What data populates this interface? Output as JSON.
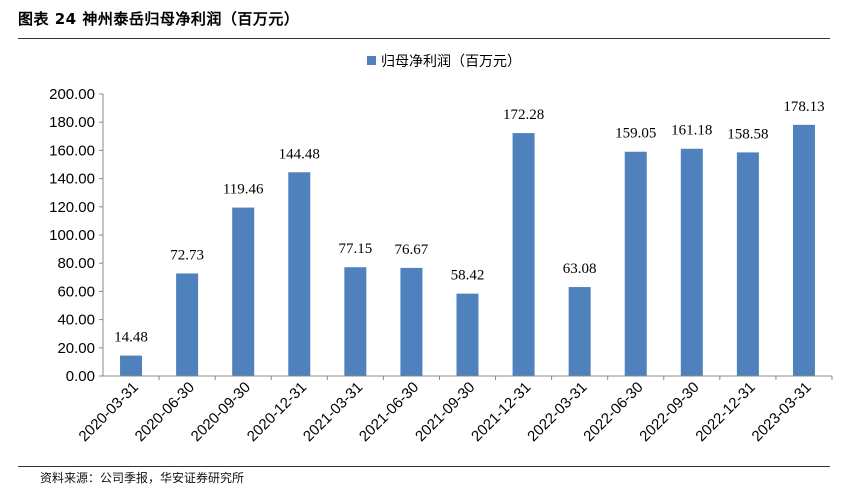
{
  "figure": {
    "title": "图表 24  神州泰岳归母净利润（百万元）",
    "source": "资料来源：公司季报，华安证券研究所"
  },
  "colors": {
    "bar": "#4f81bd",
    "axis": "#888888"
  },
  "chart_data": {
    "type": "bar",
    "categories": [
      "2020-03-31",
      "2020-06-30",
      "2020-09-30",
      "2020-12-31",
      "2021-03-31",
      "2021-06-30",
      "2021-09-30",
      "2021-12-31",
      "2022-03-31",
      "2022-06-30",
      "2022-09-30",
      "2022-12-31",
      "2023-03-31"
    ],
    "series": [
      {
        "name": "归母净利润（百万元）",
        "values": [
          14.48,
          72.73,
          119.46,
          144.48,
          77.15,
          76.67,
          58.42,
          172.28,
          63.08,
          159.05,
          161.18,
          158.58,
          178.13
        ],
        "labels": [
          "14.48",
          "72.73",
          "119.46",
          "144.48",
          "77.15",
          "76.67",
          "58.42",
          "172.28",
          "63.08",
          "159.05",
          "161.18",
          "158.58",
          "178.13"
        ]
      }
    ],
    "ylim": [
      0,
      200
    ],
    "yticks": [
      "0.00",
      "20.00",
      "40.00",
      "60.00",
      "80.00",
      "100.00",
      "120.00",
      "140.00",
      "160.00",
      "180.00",
      "200.00"
    ],
    "xlabel": "",
    "ylabel": "",
    "legend": "top-center",
    "grid": false
  }
}
